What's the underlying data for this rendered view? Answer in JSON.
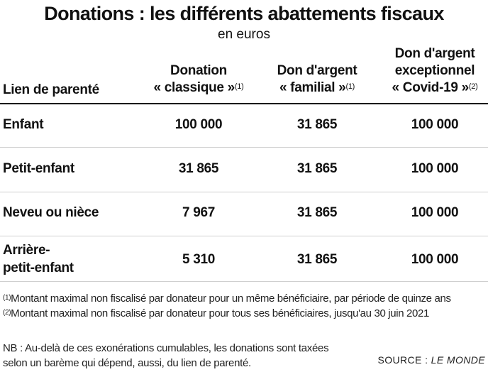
{
  "title": "Donations : les différents abattements fiscaux",
  "subtitle": "en euros",
  "headers": {
    "lien": "Lien de parenté",
    "col1": {
      "line1": "Donation",
      "line2": "« classique »",
      "note": "(1)"
    },
    "col2": {
      "line1": "Don d'argent",
      "line2": "« familial »",
      "note": "(1)"
    },
    "col3": {
      "line1": "Don d'argent",
      "line2": "exceptionnel",
      "line3": "« Covid-19 »",
      "note": "(2)"
    }
  },
  "rows": [
    {
      "lien": "Enfant",
      "lien2": "",
      "v1": "100 000",
      "v2": "31 865",
      "v3": "100 000"
    },
    {
      "lien": "Petit-enfant",
      "lien2": "",
      "v1": "31 865",
      "v2": "31 865",
      "v3": "100 000"
    },
    {
      "lien": "Neveu ou nièce",
      "lien2": "",
      "v1": "7 967",
      "v2": "31 865",
      "v3": "100 000"
    },
    {
      "lien": "Arrière-",
      "lien2": "petit-enfant",
      "v1": "5 310",
      "v2": "31 865",
      "v3": "100 000"
    }
  ],
  "notes": [
    {
      "marker": "(1)",
      "text": "Montant maximal non fiscalisé par donateur pour un même bénéficiaire, par période de quinze ans"
    },
    {
      "marker": "(2)",
      "text": "Montant maximal non fiscalisé par donateur pour tous ses bénéficiaires, jusqu'au 30 juin 2021"
    }
  ],
  "nb": {
    "line1": "NB : Au-delà de ces exonérations cumulables, les donations sont taxées",
    "line2": "selon un barème qui dépend, aussi, du lien de parenté."
  },
  "source": {
    "label": "SOURCE :",
    "name": "LE MONDE"
  }
}
